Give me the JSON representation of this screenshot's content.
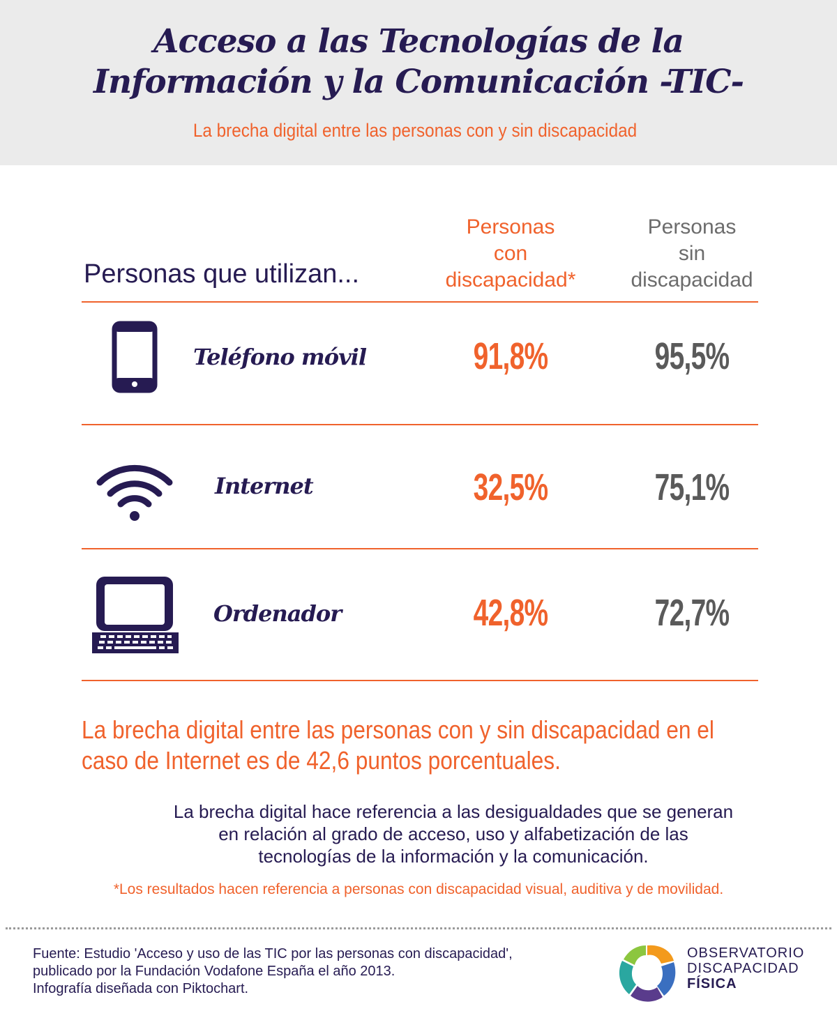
{
  "header": {
    "title_line1": "Acceso a las Tecnologías de la",
    "title_line2": "Información y la Comunicación -TIC-",
    "subtitle": "La brecha digital entre las personas con y sin discapacidad"
  },
  "table": {
    "row_header": "Personas que utilizan...",
    "col_con": [
      "Personas",
      "con",
      "discapacidad*"
    ],
    "col_sin": [
      "Personas",
      "sin",
      "discapacidad"
    ],
    "rows": [
      {
        "icon": "mobile-phone-icon",
        "label": "Teléfono móvil",
        "con": "91,8%",
        "sin": "95,5%"
      },
      {
        "icon": "wifi-icon",
        "label": "Internet",
        "con": "32,5%",
        "sin": "75,1%"
      },
      {
        "icon": "laptop-icon",
        "label": "Ordenador",
        "con": "42,8%",
        "sin": "72,7%"
      }
    ]
  },
  "highlight": [
    "La brecha digital entre las personas con y sin discapacidad en el",
    "caso de Internet es de 42,6 puntos porcentuales."
  ],
  "definition": [
    "La brecha digital hace referencia a las desigualdades que se generan",
    "en relación al grado de acceso, uso y alfabetización de las",
    "tecnologías de la información y la comunicación."
  ],
  "footnote": "*Los resultados hacen referencia a personas con discapacidad visual, auditiva y de movilidad.",
  "source": [
    "Fuente: Estudio 'Acceso y uso de las TIC por las personas con discapacidad',",
    "publicado por la Fundación Vodafone España el año 2013.",
    "Infografía diseñada con Piktochart."
  ],
  "logo": {
    "line1": "OBSERVATORIO",
    "line2": "DISCAPACIDAD",
    "line3": "FÍSICA"
  },
  "colors": {
    "orange": "#f0622c",
    "navy": "#261b52",
    "gray": "#5a5a5a",
    "header_bg": "#ebebeb"
  }
}
